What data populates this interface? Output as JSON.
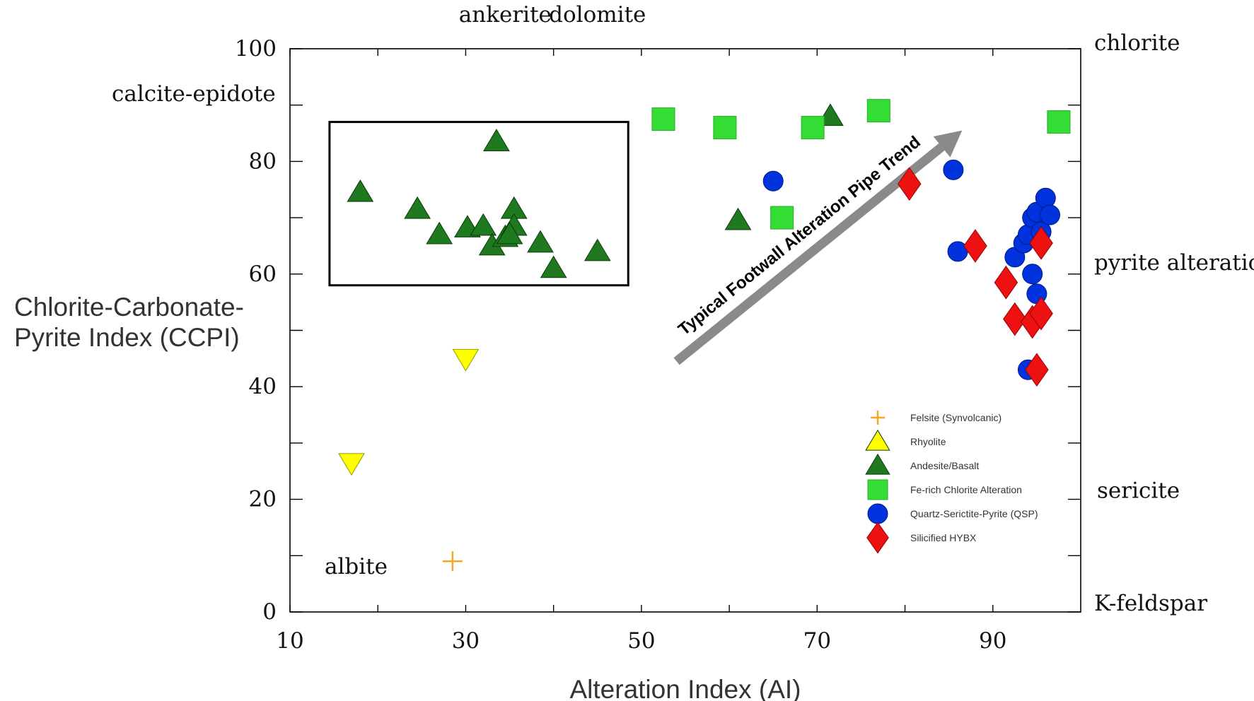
{
  "chart_data": {
    "type": "scatter",
    "title": "",
    "xlabel": "Alteration Index (AI)",
    "ylabel_lines": [
      "Chlorite-Carbonate-",
      "Pyrite Index (CCPI)"
    ],
    "xlim": [
      10,
      100
    ],
    "ylim": [
      0,
      100
    ],
    "x_ticks": [
      10,
      30,
      50,
      70,
      90
    ],
    "y_ticks": [
      0,
      20,
      40,
      60,
      80,
      100
    ],
    "minor_x_ticks": [
      20,
      40,
      60,
      80
    ],
    "minor_y_ticks": [
      10,
      30,
      50,
      70,
      90
    ],
    "grid": false,
    "legend_position": "bottom-right",
    "mineral_labels": {
      "left": [
        {
          "text": "calcite-epidote",
          "y": 92
        },
        {
          "text": "albite",
          "y": 8
        }
      ],
      "top": [
        {
          "text": "ankerite",
          "x": 34.5
        },
        {
          "text": "dolomite",
          "x": 45
        }
      ],
      "right": [
        {
          "text": "chlorite",
          "y": 101
        },
        {
          "text": "pyrite alteration",
          "y": 62
        },
        {
          "text": "sericite",
          "y": 21.5
        },
        {
          "text": "K-feldspar",
          "y": 1.5
        }
      ]
    },
    "box": {
      "x": [
        14.5,
        48.5
      ],
      "y": [
        58,
        87
      ]
    },
    "trend": {
      "label": "Typical Footwall Alteration Pipe Trend",
      "start": [
        54,
        44.5
      ],
      "end": [
        86.5,
        85.5
      ]
    },
    "colors": {
      "felsite": "#f5a623",
      "rhyolite": "#ffff00",
      "andesite": "#1f7a1f",
      "chlorite_alt": "#33dd33",
      "qsp": "#0033dd",
      "hybx": "#ee1111",
      "arrow": "#8a8a8a"
    },
    "series": [
      {
        "name": "Felsite (Synvolcanic)",
        "marker": "plus",
        "color": "#f5a623",
        "points": [
          [
            28.5,
            9
          ]
        ]
      },
      {
        "name": "Rhyolite",
        "marker": "triangle",
        "color": "#ffff00",
        "points": []
      },
      {
        "name": "Andesite/Basalt",
        "marker": "triangle",
        "color": "#1f7a1f",
        "points": [
          [
            18,
            74.5
          ],
          [
            24.5,
            71.5
          ],
          [
            27,
            67
          ],
          [
            30.2,
            68.2
          ],
          [
            32,
            68.5
          ],
          [
            33.5,
            83.5
          ],
          [
            33,
            65
          ],
          [
            34.5,
            66.5
          ],
          [
            35.5,
            71.5
          ],
          [
            35.5,
            68.5
          ],
          [
            35,
            67
          ],
          [
            38.5,
            65.5
          ],
          [
            40,
            61
          ],
          [
            45,
            64
          ],
          [
            61,
            69.5
          ],
          [
            71.5,
            88
          ]
        ]
      },
      {
        "name": "Fe-rich Chlorite Alteration",
        "marker": "square",
        "color": "#33dd33",
        "points": [
          [
            52.5,
            87.5
          ],
          [
            59.5,
            86
          ],
          [
            66,
            70
          ],
          [
            69.5,
            86
          ],
          [
            77,
            89
          ],
          [
            97.5,
            87
          ]
        ]
      },
      {
        "name": "Quartz-Serictite-Pyrite (QSP)",
        "marker": "circle",
        "color": "#0033dd",
        "points": [
          [
            65,
            76.5
          ],
          [
            85.5,
            78.5
          ],
          [
            86,
            64
          ],
          [
            92.5,
            63
          ],
          [
            93.5,
            65.5
          ],
          [
            94,
            67
          ],
          [
            94.5,
            70
          ],
          [
            95,
            71
          ],
          [
            95.5,
            67.5
          ],
          [
            96,
            73.5
          ],
          [
            96.5,
            70.5
          ],
          [
            94.5,
            60
          ],
          [
            95,
            56.5
          ],
          [
            94,
            43
          ]
        ]
      },
      {
        "name": "Silicified HYBX",
        "marker": "diamond",
        "color": "#ee1111",
        "points": [
          [
            80.5,
            76
          ],
          [
            88,
            65
          ],
          [
            91.5,
            58.5
          ],
          [
            92.5,
            52
          ],
          [
            94.5,
            51.5
          ],
          [
            95.5,
            53
          ],
          [
            95.5,
            65.5
          ],
          [
            95,
            43
          ]
        ]
      },
      {
        "name": "",
        "marker": "triangle-down",
        "color": "#ffff00",
        "points": [
          [
            17,
            26.5
          ],
          [
            30,
            45
          ]
        ]
      }
    ],
    "legend": [
      {
        "label": "Felsite (Synvolcanic)",
        "marker": "plus",
        "color": "#f5a623"
      },
      {
        "label": "Rhyolite",
        "marker": "triangle",
        "color": "#ffff00"
      },
      {
        "label": "Andesite/Basalt",
        "marker": "triangle",
        "color": "#1f7a1f"
      },
      {
        "label": "Fe-rich Chlorite Alteration",
        "marker": "square",
        "color": "#33dd33"
      },
      {
        "label": "Quartz-Serictite-Pyrite (QSP)",
        "marker": "circle",
        "color": "#0033dd"
      },
      {
        "label": "Silicified HYBX",
        "marker": "diamond",
        "color": "#ee1111"
      }
    ]
  }
}
